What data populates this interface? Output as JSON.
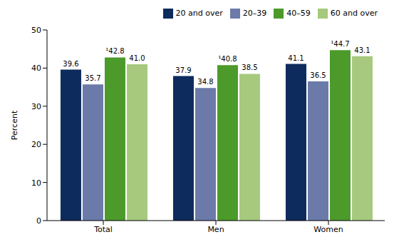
{
  "chart_data": {
    "type": "bar",
    "y_label": "Percent",
    "categories": [
      "Total",
      "Men",
      "Women"
    ],
    "series": [
      {
        "name": "20 and over",
        "color": "#0d2b5c",
        "values": [
          39.6,
          37.9,
          41.1
        ]
      },
      {
        "name": "20–39",
        "color": "#6b7aa8",
        "values": [
          35.7,
          34.8,
          36.5
        ]
      },
      {
        "name": "40–59",
        "color": "#4c9a2a",
        "values": [
          42.8,
          40.8,
          44.7
        ],
        "value_labels": [
          "¹42.8",
          "¹40.8",
          "¹44.7"
        ]
      },
      {
        "name": "60 and over",
        "color": "#a6c97e",
        "values": [
          41.0,
          38.5,
          43.1
        ],
        "value_labels": [
          "41.0",
          "38.5",
          "43.1"
        ]
      }
    ],
    "ylim": [
      0,
      50
    ],
    "yticks": [
      0,
      10,
      20,
      30,
      40,
      50
    ],
    "grid": false,
    "legend": "top right",
    "data_labels": true
  }
}
